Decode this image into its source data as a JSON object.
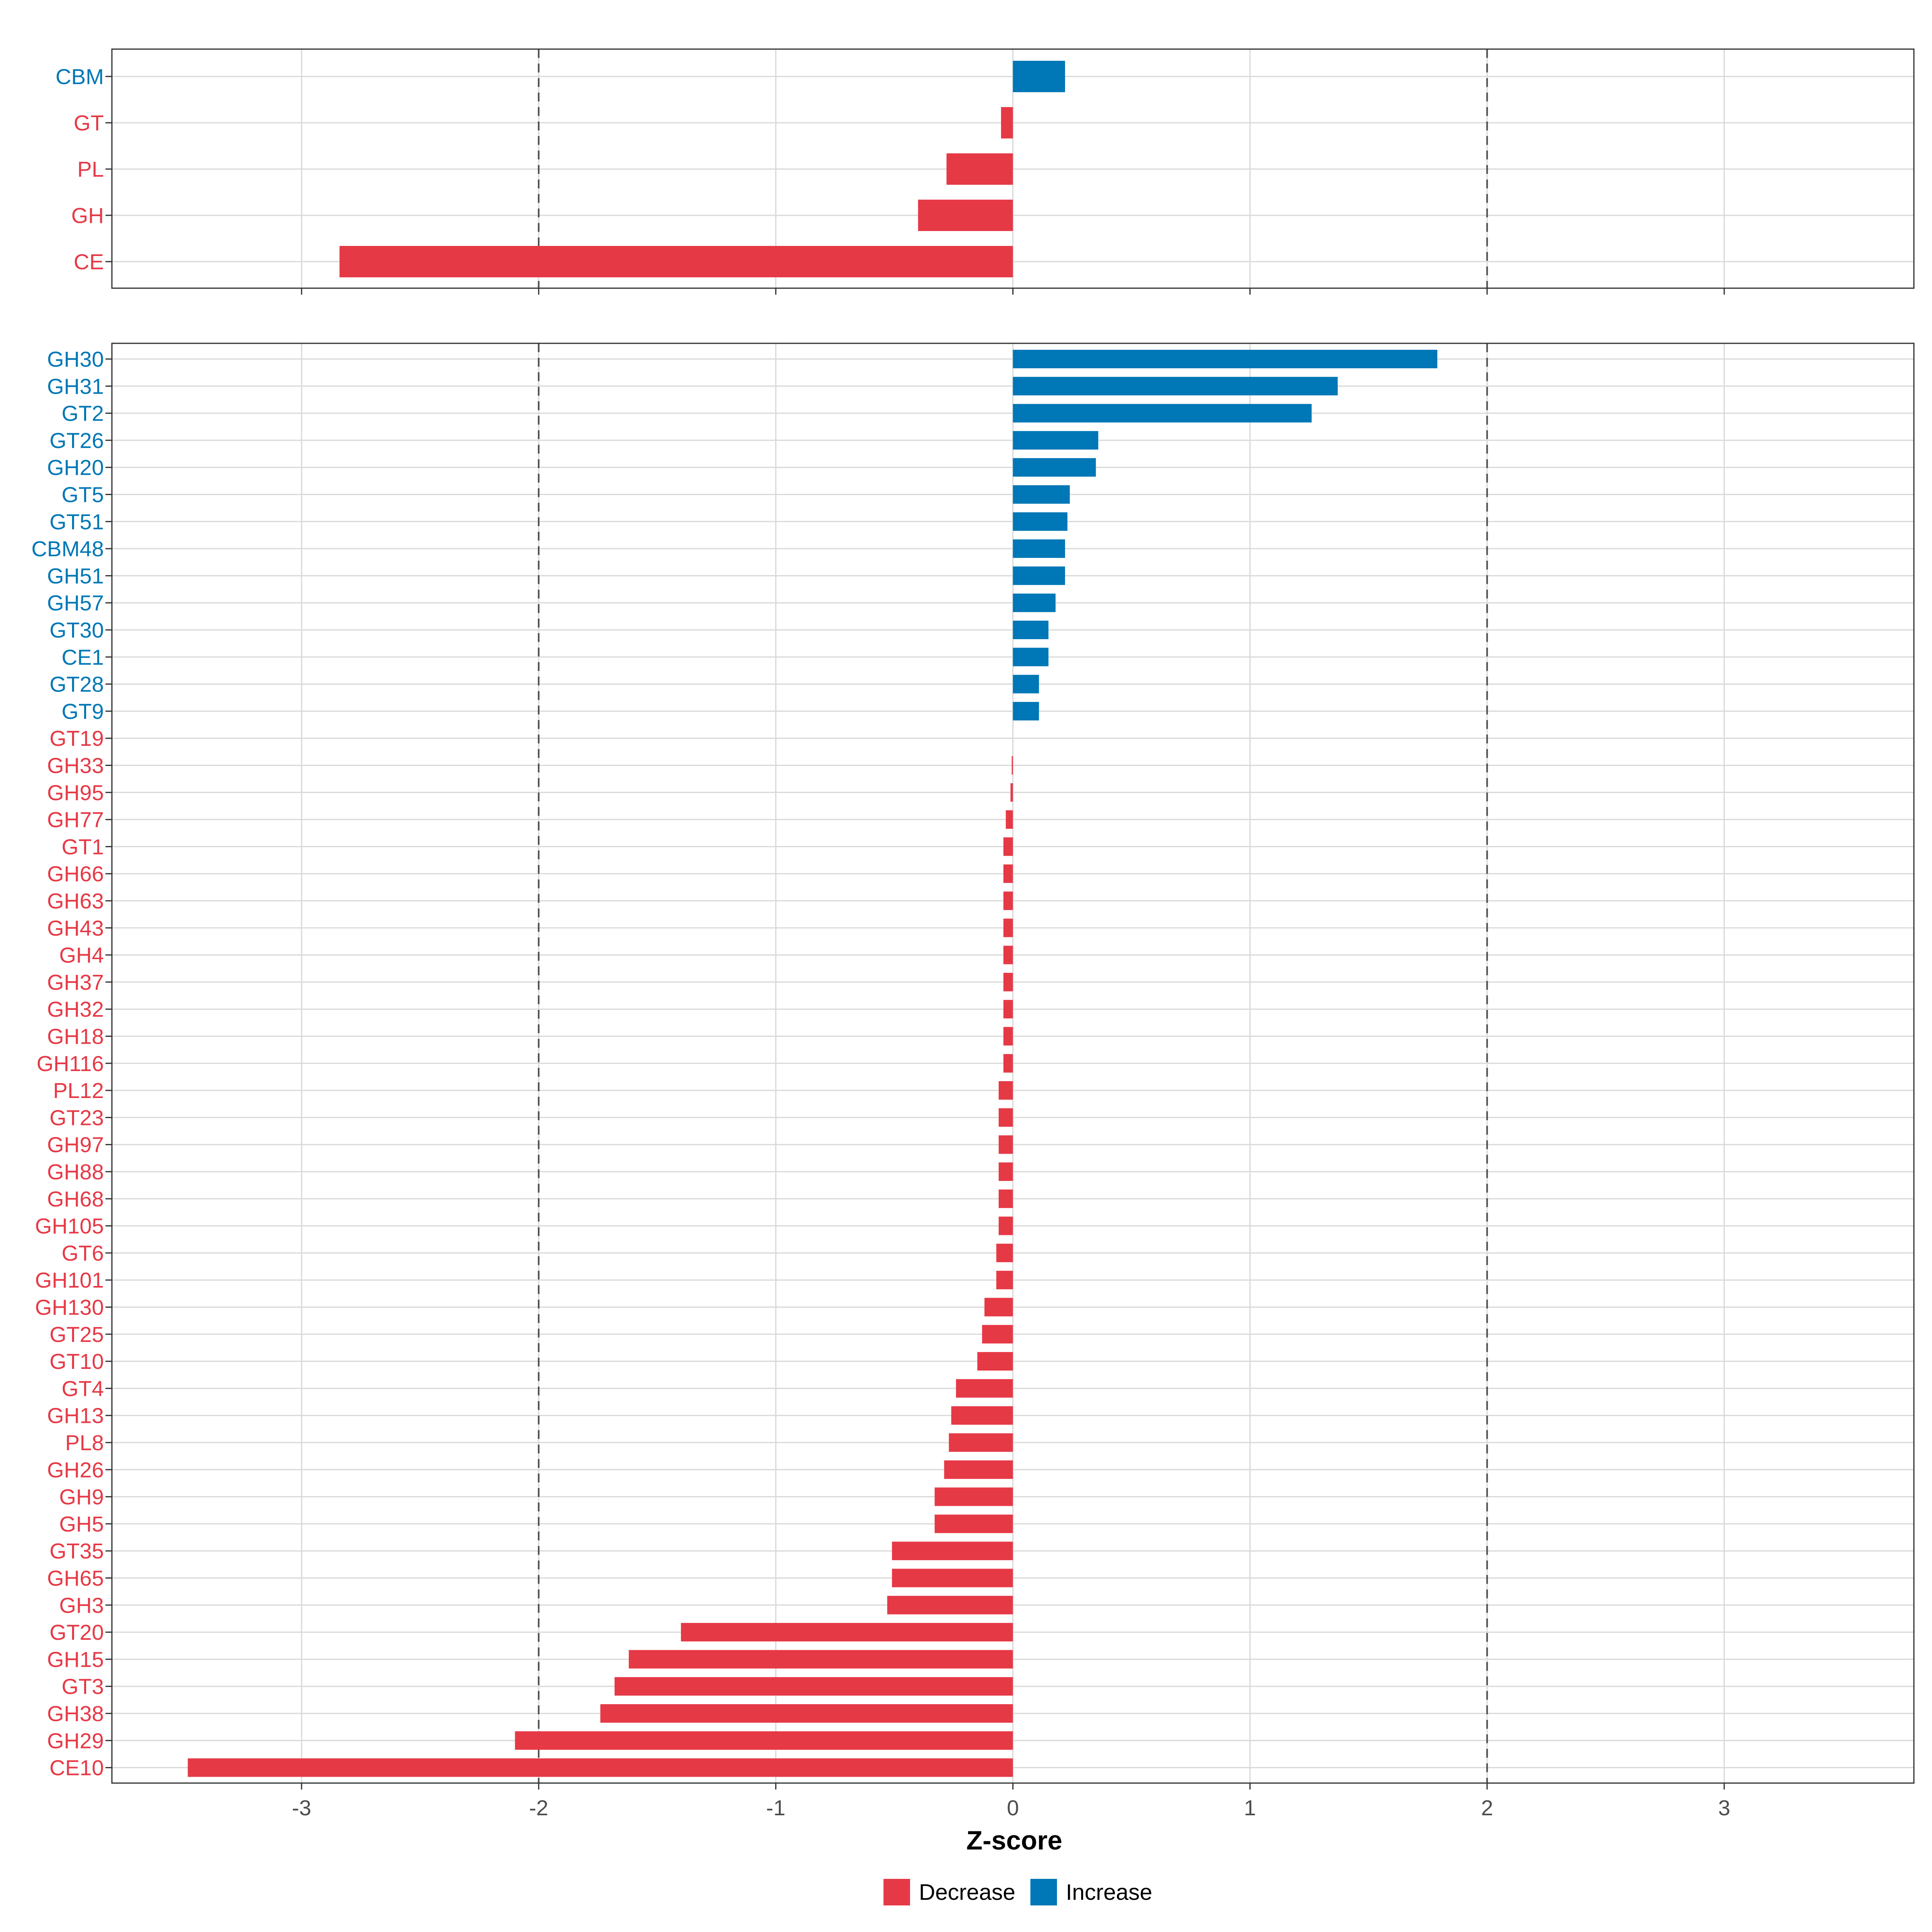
{
  "colors": {
    "decrease": "#E63946",
    "increase": "#0077B6",
    "grid": "#D9D9D9",
    "threshold": "#4d4d4d",
    "panel_border": "#333333"
  },
  "chart_data": [
    {
      "type": "bar",
      "orientation": "horizontal",
      "panel": "top",
      "categories": [
        "CBM",
        "GT",
        "PL",
        "GH",
        "CE"
      ],
      "values": [
        0.22,
        -0.05,
        -0.28,
        -0.4,
        -2.84
      ],
      "xlim": [
        -3.8,
        3.8
      ],
      "xticks": [
        -3,
        -2,
        -1,
        0,
        1,
        2,
        3
      ],
      "reference_lines": [
        -2,
        2
      ]
    },
    {
      "type": "bar",
      "orientation": "horizontal",
      "panel": "bottom",
      "categories": [
        "GH30",
        "GH31",
        "GT2",
        "GT26",
        "GH20",
        "GT5",
        "GT51",
        "CBM48",
        "GH51",
        "GH57",
        "GT30",
        "CE1",
        "GT28",
        "GT9",
        "GT19",
        "GH33",
        "GH95",
        "GH77",
        "GT1",
        "GH66",
        "GH63",
        "GH43",
        "GH4",
        "GH37",
        "GH32",
        "GH18",
        "GH116",
        "PL12",
        "GT23",
        "GH97",
        "GH88",
        "GH68",
        "GH105",
        "GT6",
        "GH101",
        "GH130",
        "GT25",
        "GT10",
        "GT4",
        "GH13",
        "PL8",
        "GH26",
        "GH9",
        "GH5",
        "GT35",
        "GH65",
        "GH3",
        "GT20",
        "GH15",
        "GT3",
        "GH38",
        "GH29",
        "CE10"
      ],
      "values": [
        1.79,
        1.37,
        1.26,
        0.36,
        0.35,
        0.24,
        0.23,
        0.22,
        0.22,
        0.18,
        0.15,
        0.15,
        0.11,
        0.11,
        0.0,
        -0.005,
        -0.01,
        -0.03,
        -0.04,
        -0.04,
        -0.04,
        -0.04,
        -0.04,
        -0.04,
        -0.04,
        -0.04,
        -0.04,
        -0.06,
        -0.06,
        -0.06,
        -0.06,
        -0.06,
        -0.06,
        -0.07,
        -0.07,
        -0.12,
        -0.13,
        -0.15,
        -0.24,
        -0.26,
        -0.27,
        -0.29,
        -0.33,
        -0.33,
        -0.51,
        -0.51,
        -0.53,
        -1.4,
        -1.62,
        -1.68,
        -1.74,
        -2.1,
        -3.48
      ],
      "xlim": [
        -3.8,
        3.8
      ],
      "xticks": [
        -3,
        -2,
        -1,
        0,
        1,
        2,
        3
      ],
      "reference_lines": [
        -2,
        2
      ]
    }
  ],
  "x_tick_labels": [
    "-3",
    "-2",
    "-1",
    "0",
    "1",
    "2",
    "3"
  ],
  "xlabel": "Z-score",
  "legend": {
    "position": "bottom",
    "items": [
      {
        "label": "Decrease",
        "color": "#E63946"
      },
      {
        "label": "Increase",
        "color": "#0077B6"
      }
    ]
  }
}
